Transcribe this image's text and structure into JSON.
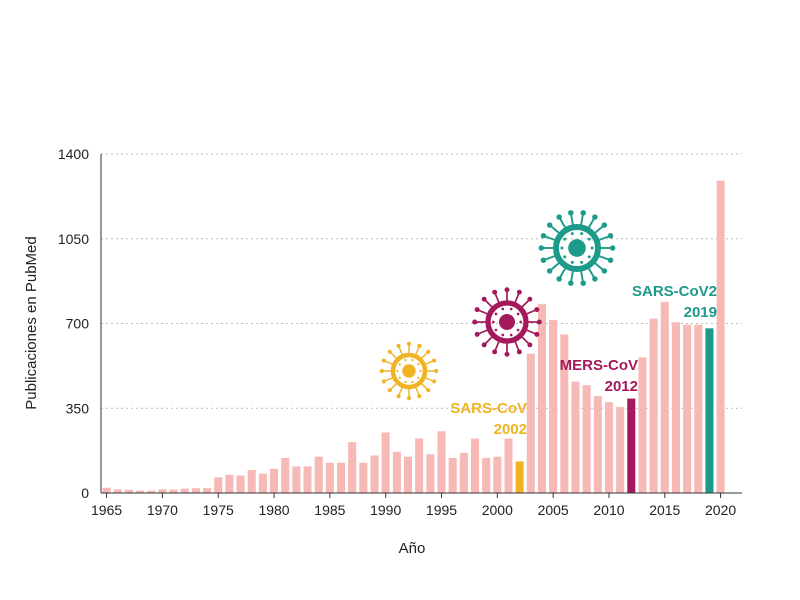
{
  "chart_data": {
    "type": "bar",
    "xlabel": "Año",
    "ylabel": "Publicaciones en PubMed",
    "ylim": [
      0,
      1400
    ],
    "yticks": [
      0,
      350,
      700,
      1050,
      1400
    ],
    "xticks": [
      1965,
      1970,
      1975,
      1980,
      1985,
      1990,
      1995,
      2000,
      2005,
      2010,
      2015,
      2020
    ],
    "grid": "horizontal dotted",
    "categories": [
      1965,
      1966,
      1967,
      1968,
      1969,
      1970,
      1971,
      1972,
      1973,
      1974,
      1975,
      1976,
      1977,
      1978,
      1979,
      1980,
      1981,
      1982,
      1983,
      1984,
      1985,
      1986,
      1987,
      1988,
      1989,
      1990,
      1991,
      1992,
      1993,
      1994,
      1995,
      1996,
      1997,
      1998,
      1999,
      2000,
      2001,
      2002,
      2003,
      2004,
      2005,
      2006,
      2007,
      2008,
      2009,
      2010,
      2011,
      2012,
      2013,
      2014,
      2015,
      2016,
      2017,
      2018,
      2019,
      2020
    ],
    "values": [
      22,
      15,
      13,
      10,
      10,
      15,
      14,
      18,
      20,
      20,
      65,
      75,
      72,
      95,
      80,
      100,
      145,
      110,
      110,
      150,
      125,
      125,
      210,
      125,
      155,
      250,
      170,
      150,
      225,
      160,
      255,
      145,
      165,
      225,
      145,
      150,
      225,
      130,
      575,
      780,
      715,
      655,
      460,
      445,
      400,
      375,
      355,
      390,
      560,
      720,
      790,
      705,
      695,
      695,
      680,
      1290
    ],
    "colors": {
      "default": "#f7b9b5",
      "sars_cov": "#f0b323",
      "mers_cov": "#a3195b",
      "sars_cov2": "#1d9a8a"
    },
    "highlights": [
      {
        "year": 2002,
        "color": "sars_cov",
        "label": "SARS-CoV",
        "year_label": "2002",
        "icon": "virus-icon"
      },
      {
        "year": 2012,
        "color": "mers_cov",
        "label": "MERS-CoV",
        "year_label": "2012",
        "icon": "virus-icon"
      },
      {
        "year": 2019,
        "color": "sars_cov2",
        "label": "SARS-CoV2",
        "year_label": "2019",
        "icon": "virus-icon"
      }
    ]
  }
}
